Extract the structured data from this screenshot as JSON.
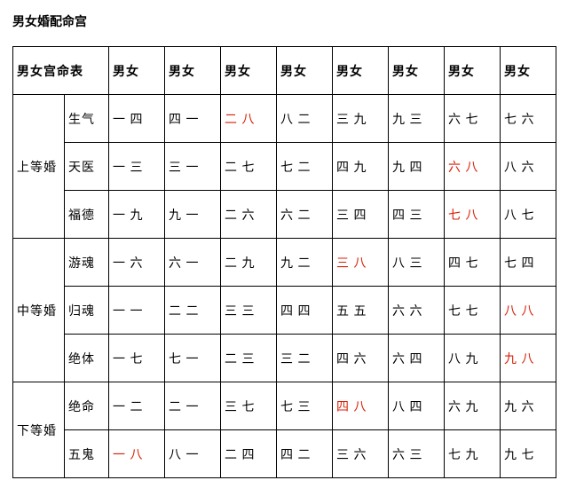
{
  "title": "男女婚配命宫",
  "header": {
    "corner": "男女宫命表",
    "cols": [
      "男女",
      "男女",
      "男女",
      "男女",
      "男女",
      "男女",
      "男女",
      "男女"
    ]
  },
  "groups": [
    {
      "grade": "上等婚",
      "rows": [
        {
          "type": "生气",
          "cells": [
            {
              "v": "一 四"
            },
            {
              "v": "四 一"
            },
            {
              "v": "二 八",
              "red": true
            },
            {
              "v": "八 二"
            },
            {
              "v": "三 九"
            },
            {
              "v": "九 三"
            },
            {
              "v": "六 七"
            },
            {
              "v": "七 六"
            }
          ]
        },
        {
          "type": "天医",
          "cells": [
            {
              "v": "一 三"
            },
            {
              "v": "三 一"
            },
            {
              "v": "二 七"
            },
            {
              "v": "七 二"
            },
            {
              "v": "四 九"
            },
            {
              "v": "九 四"
            },
            {
              "v": "六 八",
              "red": true
            },
            {
              "v": "八 六"
            }
          ]
        },
        {
          "type": "福德",
          "cells": [
            {
              "v": "一 九"
            },
            {
              "v": "九 一"
            },
            {
              "v": "二 六"
            },
            {
              "v": "六 二"
            },
            {
              "v": "三 四"
            },
            {
              "v": "四 三"
            },
            {
              "v": "七 八",
              "red": true
            },
            {
              "v": "八 七"
            }
          ]
        }
      ]
    },
    {
      "grade": "中等婚",
      "rows": [
        {
          "type": "游魂",
          "cells": [
            {
              "v": "一 六"
            },
            {
              "v": "六 一"
            },
            {
              "v": "二 九"
            },
            {
              "v": "九 二"
            },
            {
              "v": "三 八",
              "red": true
            },
            {
              "v": "八 三"
            },
            {
              "v": "四 七"
            },
            {
              "v": "七 四"
            }
          ]
        },
        {
          "type": "归魂",
          "cells": [
            {
              "v": "一 一"
            },
            {
              "v": "二 二"
            },
            {
              "v": "三 三"
            },
            {
              "v": "四 四"
            },
            {
              "v": "五 五"
            },
            {
              "v": "六 六"
            },
            {
              "v": "七 七"
            },
            {
              "v": "八 八",
              "red": true
            }
          ]
        },
        {
          "type": "绝体",
          "cells": [
            {
              "v": "一 七"
            },
            {
              "v": "七 一"
            },
            {
              "v": "二 三"
            },
            {
              "v": "三 二"
            },
            {
              "v": "四 六"
            },
            {
              "v": "六 四"
            },
            {
              "v": "八 九"
            },
            {
              "v": "九 八",
              "red": true
            }
          ]
        }
      ]
    },
    {
      "grade": "下等婚",
      "rows": [
        {
          "type": "绝命",
          "cells": [
            {
              "v": "一 二"
            },
            {
              "v": "二 一"
            },
            {
              "v": "三 七"
            },
            {
              "v": "七 三"
            },
            {
              "v": "四 八",
              "red": true
            },
            {
              "v": "八 四"
            },
            {
              "v": "六 九"
            },
            {
              "v": "九 六"
            }
          ]
        },
        {
          "type": "五鬼",
          "cells": [
            {
              "v": "一 八",
              "red": true
            },
            {
              "v": "八 一"
            },
            {
              "v": "二 四"
            },
            {
              "v": "四 二"
            },
            {
              "v": "三 六"
            },
            {
              "v": "六 三"
            },
            {
              "v": "七 九"
            },
            {
              "v": "九 七"
            }
          ]
        }
      ]
    }
  ]
}
